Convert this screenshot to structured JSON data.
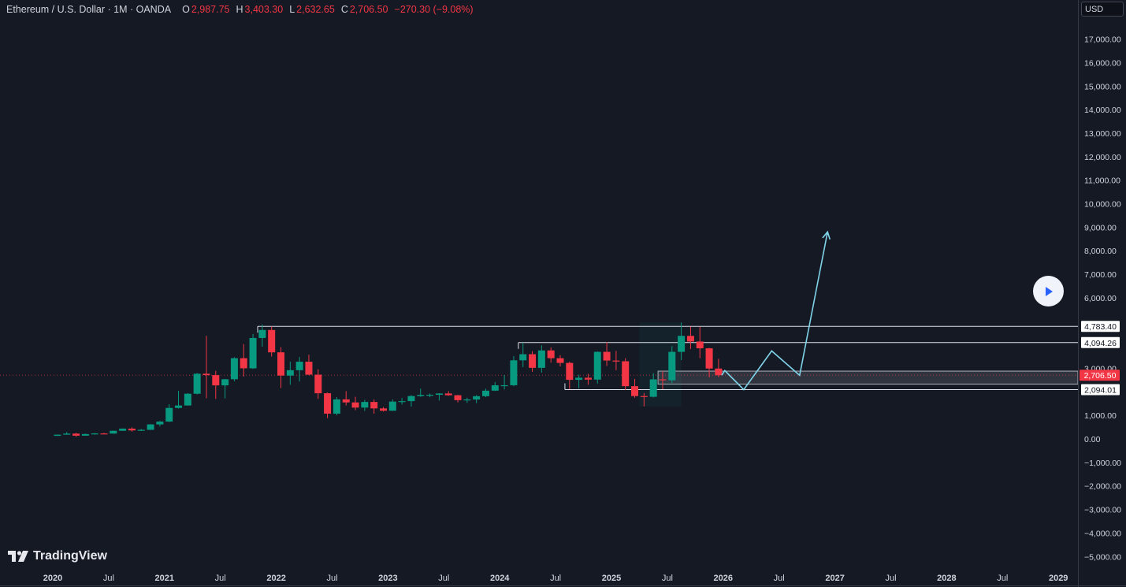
{
  "header": {
    "symbol": "Ethereum / U.S. Dollar · 1M · OANDA",
    "open_label": "O",
    "open": "2,987.75",
    "high_label": "H",
    "high": "3,403.30",
    "low_label": "L",
    "low": "2,632.65",
    "close_label": "C",
    "close": "2,706.50",
    "change": "−270.30 (−9.08%)"
  },
  "currency": "USD",
  "brand": "TradingView",
  "colors": {
    "background": "#151924",
    "up": "#089981",
    "down": "#f23645",
    "projection": "#7fd3e8",
    "axis_text": "#d1d4dc",
    "grid_line": "#363a45"
  },
  "chart_data": {
    "type": "candlestick",
    "title": "Ethereum / U.S. Dollar · 1M · OANDA",
    "ylim": [
      -5600,
      18000
    ],
    "grid": false,
    "y_ticks": [
      {
        "v": 17000,
        "t": "17,000.00"
      },
      {
        "v": 16000,
        "t": "16,000.00"
      },
      {
        "v": 15000,
        "t": "15,000.00"
      },
      {
        "v": 14000,
        "t": "14,000.00"
      },
      {
        "v": 13000,
        "t": "13,000.00"
      },
      {
        "v": 12000,
        "t": "12,000.00"
      },
      {
        "v": 11000,
        "t": "11,000.00"
      },
      {
        "v": 10000,
        "t": "10,000.00"
      },
      {
        "v": 9000,
        "t": "9,000.00"
      },
      {
        "v": 8000,
        "t": "8,000.00"
      },
      {
        "v": 7000,
        "t": "7,000.00"
      },
      {
        "v": 6000,
        "t": "6,000.00"
      },
      {
        "v": 3000,
        "t": "3,000.00"
      },
      {
        "v": 1000,
        "t": "1,000.00"
      },
      {
        "v": 0,
        "t": "0.00"
      },
      {
        "v": -1000,
        "t": "−1,000.00"
      },
      {
        "v": -2000,
        "t": "−2,000.00"
      },
      {
        "v": -3000,
        "t": "−3,000.00"
      },
      {
        "v": -4000,
        "t": "−4,000.00"
      },
      {
        "v": -5000,
        "t": "−5,000.00"
      }
    ],
    "x_ticks": [
      {
        "t": "2020",
        "year": 2020,
        "bold": true
      },
      {
        "t": "Jul",
        "year": 2020.5,
        "bold": false
      },
      {
        "t": "2021",
        "year": 2021,
        "bold": true
      },
      {
        "t": "Jul",
        "year": 2021.5,
        "bold": false
      },
      {
        "t": "2022",
        "year": 2022,
        "bold": true
      },
      {
        "t": "Jul",
        "year": 2022.5,
        "bold": false
      },
      {
        "t": "2023",
        "year": 2023,
        "bold": true
      },
      {
        "t": "Jul",
        "year": 2023.5,
        "bold": false
      },
      {
        "t": "2024",
        "year": 2024,
        "bold": true
      },
      {
        "t": "Jul",
        "year": 2024.5,
        "bold": false
      },
      {
        "t": "2025",
        "year": 2025,
        "bold": true
      },
      {
        "t": "Jul",
        "year": 2025.5,
        "bold": false
      },
      {
        "t": "2026",
        "year": 2026,
        "bold": true
      },
      {
        "t": "Jul",
        "year": 2026.5,
        "bold": false
      },
      {
        "t": "2027",
        "year": 2027,
        "bold": true
      },
      {
        "t": "Jul",
        "year": 2027.5,
        "bold": false
      },
      {
        "t": "2028",
        "year": 2028,
        "bold": true
      },
      {
        "t": "Jul",
        "year": 2028.5,
        "bold": false
      },
      {
        "t": "2029",
        "year": 2029,
        "bold": true
      }
    ],
    "candles": [
      {
        "d": "2020-01",
        "o": 130,
        "h": 185,
        "l": 125,
        "c": 180
      },
      {
        "d": "2020-02",
        "o": 180,
        "h": 290,
        "l": 175,
        "c": 225
      },
      {
        "d": "2020-03",
        "o": 225,
        "h": 255,
        "l": 90,
        "c": 135
      },
      {
        "d": "2020-04",
        "o": 135,
        "h": 225,
        "l": 130,
        "c": 205
      },
      {
        "d": "2020-05",
        "o": 205,
        "h": 245,
        "l": 185,
        "c": 230
      },
      {
        "d": "2020-06",
        "o": 230,
        "h": 255,
        "l": 215,
        "c": 225
      },
      {
        "d": "2020-07",
        "o": 225,
        "h": 350,
        "l": 220,
        "c": 345
      },
      {
        "d": "2020-08",
        "o": 345,
        "h": 445,
        "l": 340,
        "c": 435
      },
      {
        "d": "2020-09",
        "o": 435,
        "h": 490,
        "l": 310,
        "c": 360
      },
      {
        "d": "2020-10",
        "o": 360,
        "h": 420,
        "l": 335,
        "c": 385
      },
      {
        "d": "2020-11",
        "o": 385,
        "h": 630,
        "l": 375,
        "c": 615
      },
      {
        "d": "2020-12",
        "o": 615,
        "h": 760,
        "l": 530,
        "c": 735
      },
      {
        "d": "2021-01",
        "o": 735,
        "h": 1470,
        "l": 715,
        "c": 1315
      },
      {
        "d": "2021-02",
        "o": 1315,
        "h": 2040,
        "l": 1290,
        "c": 1420
      },
      {
        "d": "2021-03",
        "o": 1420,
        "h": 1945,
        "l": 1420,
        "c": 1920
      },
      {
        "d": "2021-04",
        "o": 1920,
        "h": 2800,
        "l": 1890,
        "c": 2770
      },
      {
        "d": "2021-05",
        "o": 2770,
        "h": 4380,
        "l": 1730,
        "c": 2710
      },
      {
        "d": "2021-06",
        "o": 2710,
        "h": 2890,
        "l": 1700,
        "c": 2275
      },
      {
        "d": "2021-07",
        "o": 2275,
        "h": 2550,
        "l": 1720,
        "c": 2535
      },
      {
        "d": "2021-08",
        "o": 2535,
        "h": 3470,
        "l": 2450,
        "c": 3430
      },
      {
        "d": "2021-09",
        "o": 3430,
        "h": 4030,
        "l": 2650,
        "c": 3000
      },
      {
        "d": "2021-10",
        "o": 3000,
        "h": 4460,
        "l": 2970,
        "c": 4290
      },
      {
        "d": "2021-11",
        "o": 4290,
        "h": 4870,
        "l": 3920,
        "c": 4630
      },
      {
        "d": "2021-12",
        "o": 4630,
        "h": 4780,
        "l": 3500,
        "c": 3680
      },
      {
        "d": "2022-01",
        "o": 3680,
        "h": 3900,
        "l": 2160,
        "c": 2690
      },
      {
        "d": "2022-02",
        "o": 2690,
        "h": 3280,
        "l": 2300,
        "c": 2920
      },
      {
        "d": "2022-03",
        "o": 2920,
        "h": 3480,
        "l": 2440,
        "c": 3280
      },
      {
        "d": "2022-04",
        "o": 3280,
        "h": 3580,
        "l": 2710,
        "c": 2730
      },
      {
        "d": "2022-05",
        "o": 2730,
        "h": 2960,
        "l": 1700,
        "c": 1940
      },
      {
        "d": "2022-06",
        "o": 1940,
        "h": 1970,
        "l": 880,
        "c": 1070
      },
      {
        "d": "2022-07",
        "o": 1070,
        "h": 1780,
        "l": 1000,
        "c": 1680
      },
      {
        "d": "2022-08",
        "o": 1680,
        "h": 2030,
        "l": 1420,
        "c": 1550
      },
      {
        "d": "2022-09",
        "o": 1550,
        "h": 1790,
        "l": 1220,
        "c": 1330
      },
      {
        "d": "2022-10",
        "o": 1330,
        "h": 1660,
        "l": 1190,
        "c": 1570
      },
      {
        "d": "2022-11",
        "o": 1570,
        "h": 1680,
        "l": 1070,
        "c": 1295
      },
      {
        "d": "2022-12",
        "o": 1295,
        "h": 1355,
        "l": 1165,
        "c": 1195
      },
      {
        "d": "2023-01",
        "o": 1195,
        "h": 1680,
        "l": 1190,
        "c": 1585
      },
      {
        "d": "2023-02",
        "o": 1585,
        "h": 1740,
        "l": 1460,
        "c": 1605
      },
      {
        "d": "2023-03",
        "o": 1605,
        "h": 1860,
        "l": 1370,
        "c": 1820
      },
      {
        "d": "2023-04",
        "o": 1820,
        "h": 2140,
        "l": 1790,
        "c": 1870
      },
      {
        "d": "2023-05",
        "o": 1870,
        "h": 1930,
        "l": 1770,
        "c": 1875
      },
      {
        "d": "2023-06",
        "o": 1875,
        "h": 1940,
        "l": 1630,
        "c": 1930
      },
      {
        "d": "2023-07",
        "o": 1930,
        "h": 2030,
        "l": 1830,
        "c": 1855
      },
      {
        "d": "2023-08",
        "o": 1855,
        "h": 1870,
        "l": 1550,
        "c": 1645
      },
      {
        "d": "2023-09",
        "o": 1645,
        "h": 1750,
        "l": 1530,
        "c": 1675
      },
      {
        "d": "2023-10",
        "o": 1675,
        "h": 1860,
        "l": 1520,
        "c": 1815
      },
      {
        "d": "2023-11",
        "o": 1815,
        "h": 2135,
        "l": 1775,
        "c": 2050
      },
      {
        "d": "2023-12",
        "o": 2050,
        "h": 2420,
        "l": 2035,
        "c": 2280
      },
      {
        "d": "2024-01",
        "o": 2280,
        "h": 2715,
        "l": 2100,
        "c": 2280
      },
      {
        "d": "2024-02",
        "o": 2280,
        "h": 3520,
        "l": 2240,
        "c": 3340
      },
      {
        "d": "2024-03",
        "o": 3340,
        "h": 4090,
        "l": 3050,
        "c": 3600
      },
      {
        "d": "2024-04",
        "o": 3600,
        "h": 3730,
        "l": 2850,
        "c": 3020
      },
      {
        "d": "2024-05",
        "o": 3020,
        "h": 3980,
        "l": 2820,
        "c": 3760
      },
      {
        "d": "2024-06",
        "o": 3760,
        "h": 3890,
        "l": 3240,
        "c": 3430
      },
      {
        "d": "2024-07",
        "o": 3430,
        "h": 3560,
        "l": 3080,
        "c": 3230
      },
      {
        "d": "2024-08",
        "o": 3230,
        "h": 3280,
        "l": 2120,
        "c": 2510
      },
      {
        "d": "2024-09",
        "o": 2510,
        "h": 2730,
        "l": 2150,
        "c": 2600
      },
      {
        "d": "2024-10",
        "o": 2600,
        "h": 2770,
        "l": 2300,
        "c": 2520
      },
      {
        "d": "2024-11",
        "o": 2520,
        "h": 3720,
        "l": 2350,
        "c": 3700
      },
      {
        "d": "2024-12",
        "o": 3700,
        "h": 4110,
        "l": 3100,
        "c": 3330
      },
      {
        "d": "2025-01",
        "o": 3330,
        "h": 3740,
        "l": 2920,
        "c": 3300
      },
      {
        "d": "2025-02",
        "o": 3300,
        "h": 3430,
        "l": 2080,
        "c": 2240
      },
      {
        "d": "2025-03",
        "o": 2240,
        "h": 2550,
        "l": 1750,
        "c": 1820
      },
      {
        "d": "2025-04",
        "o": 1820,
        "h": 1950,
        "l": 1380,
        "c": 1790
      },
      {
        "d": "2025-05",
        "o": 1790,
        "h": 2790,
        "l": 1760,
        "c": 2530
      },
      {
        "d": "2025-06",
        "o": 2530,
        "h": 2880,
        "l": 2110,
        "c": 2490
      },
      {
        "d": "2025-07",
        "o": 2490,
        "h": 3940,
        "l": 2370,
        "c": 3700
      },
      {
        "d": "2025-08",
        "o": 3700,
        "h": 4950,
        "l": 3350,
        "c": 4380
      },
      {
        "d": "2025-09",
        "o": 4380,
        "h": 4770,
        "l": 3820,
        "c": 4140
      },
      {
        "d": "2025-10",
        "o": 4140,
        "h": 4760,
        "l": 3430,
        "c": 3850
      },
      {
        "d": "2025-11",
        "o": 3850,
        "h": 3870,
        "l": 2620,
        "c": 2990
      },
      {
        "d": "2025-12",
        "o": 2990,
        "h": 3403.3,
        "l": 2632.65,
        "c": 2706.5
      }
    ],
    "levels": [
      {
        "value": 4783.4,
        "label": "4,783.40",
        "from": "2021-11",
        "kind": "resistance"
      },
      {
        "value": 4094.26,
        "label": "4,094.26",
        "from": "2024-03",
        "kind": "resistance"
      },
      {
        "value": 2094.01,
        "label": "2,094.01",
        "from": "2024-08",
        "kind": "support"
      }
    ],
    "last_price": {
      "value": 2706.5,
      "label": "2,706.50"
    },
    "demand_zone": {
      "from": "2025-06",
      "low": 2330,
      "high": 2880
    },
    "projection_path": [
      {
        "year": 2026.0,
        "price": 2906
      },
      {
        "year": 2026.17,
        "price": 2094
      },
      {
        "year": 2026.42,
        "price": 3740
      },
      {
        "year": 2026.67,
        "price": 2700
      },
      {
        "year": 2026.92,
        "price": 8800
      }
    ]
  }
}
